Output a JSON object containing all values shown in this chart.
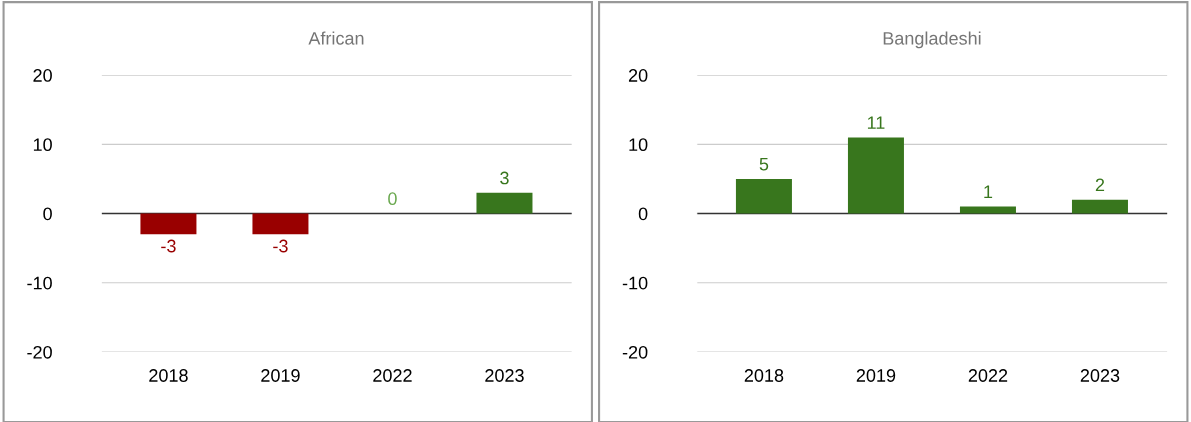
{
  "chart_data": [
    {
      "type": "bar",
      "title": "African",
      "categories": [
        "2018",
        "2019",
        "2022",
        "2023"
      ],
      "values": [
        -3,
        -3,
        0,
        3
      ],
      "colors": [
        "#990000",
        "#990000",
        "#6aa84f",
        "#38761d"
      ],
      "ylim": [
        -20,
        20
      ],
      "yticks": [
        -20,
        -10,
        0,
        10,
        20
      ],
      "grid": "y",
      "data_labels": true
    },
    {
      "type": "bar",
      "title": "Bangladeshi",
      "categories": [
        "2018",
        "2019",
        "2022",
        "2023"
      ],
      "values": [
        5,
        11,
        1,
        2
      ],
      "colors": [
        "#38761d",
        "#38761d",
        "#38761d",
        "#38761d"
      ],
      "ylim": [
        -20,
        20
      ],
      "yticks": [
        -20,
        -10,
        0,
        10,
        20
      ],
      "grid": "y",
      "data_labels": true
    }
  ]
}
